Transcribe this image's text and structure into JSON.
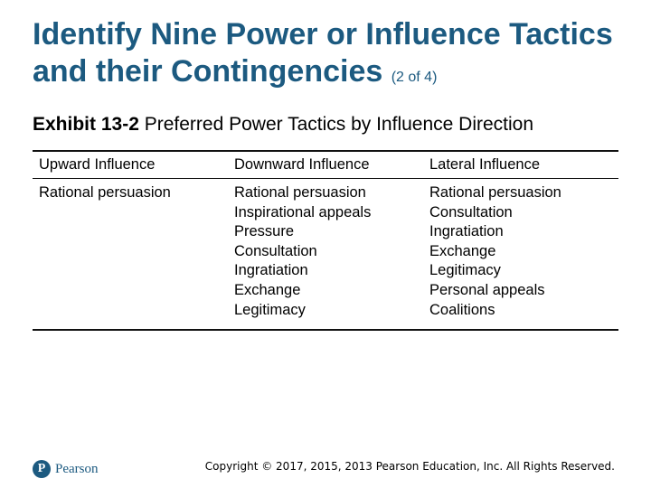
{
  "slide": {
    "title_main": "Identify Nine Power or Influence Tactics and their Contingencies",
    "title_paren": "(2 of 4)"
  },
  "exhibit": {
    "label": "Exhibit 13-2",
    "caption": "Preferred Power Tactics by Influence Direction"
  },
  "table": {
    "headers": [
      "Upward Influence",
      "Downward Influence",
      "Lateral Influence"
    ],
    "columns": [
      [
        "Rational persuasion"
      ],
      [
        "Rational persuasion",
        "Inspirational appeals",
        "Pressure",
        "Consultation",
        "Ingratiation",
        "Exchange",
        "Legitimacy"
      ],
      [
        "Rational persuasion",
        "Consultation",
        "Ingratiation",
        "Exchange",
        "Legitimacy",
        "Personal appeals",
        "Coalitions"
      ]
    ]
  },
  "footer": {
    "logo_text": "Pearson",
    "copyright": "Copyright © 2017, 2015, 2013 Pearson Education, Inc. All Rights Reserved."
  },
  "colors": {
    "title": "#1c5a80",
    "brand": "#1c5a80"
  }
}
